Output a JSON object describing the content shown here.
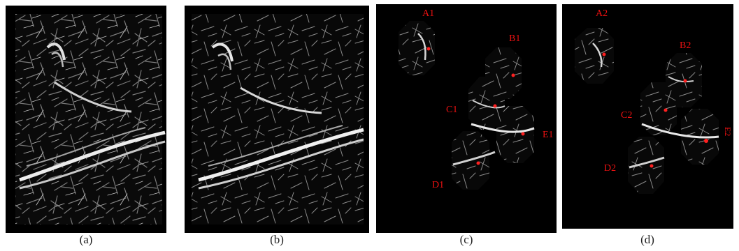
{
  "captions": {
    "a": "(a)",
    "b": "(b)",
    "c": "(c)",
    "d": "(d)"
  },
  "panel_c": {
    "labels": {
      "A1": "A1",
      "B1": "B1",
      "C1": "C1",
      "D1": "D1",
      "E1": "E1"
    }
  },
  "panel_d": {
    "labels": {
      "A2": "A2",
      "B2": "B2",
      "C2": "C2",
      "D2": "D2",
      "E2": "E2"
    }
  },
  "colors": {
    "background": "#000000",
    "fiber": "#d8d8d8",
    "marker": "#ff2020",
    "label": "#e11111"
  }
}
